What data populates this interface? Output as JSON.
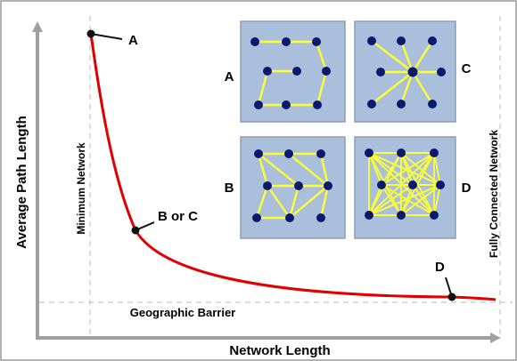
{
  "frame_color": "#9a9a9a",
  "curve_color": "#e00000",
  "dot_color": "#0b1a6e",
  "link_color": "#ffff33",
  "panel_color": "#a9bfdc",
  "axes": {
    "x_label": "Network Length",
    "y_label": "Average Path Length"
  },
  "guides": {
    "minimum_network": "Minimum Network",
    "fully_connected": "Fully Connected Network",
    "geographic_barrier": "Geographic Barrier"
  },
  "curve_points": {
    "a": "A",
    "b_or_c": "B or C",
    "d": "D"
  },
  "insets": [
    {
      "id": "A",
      "label": "A",
      "topology": "path"
    },
    {
      "id": "B",
      "label": "B",
      "topology": "partial-mesh"
    },
    {
      "id": "C",
      "label": "C",
      "topology": "star"
    },
    {
      "id": "D",
      "label": "D",
      "topology": "full-mesh"
    }
  ]
}
